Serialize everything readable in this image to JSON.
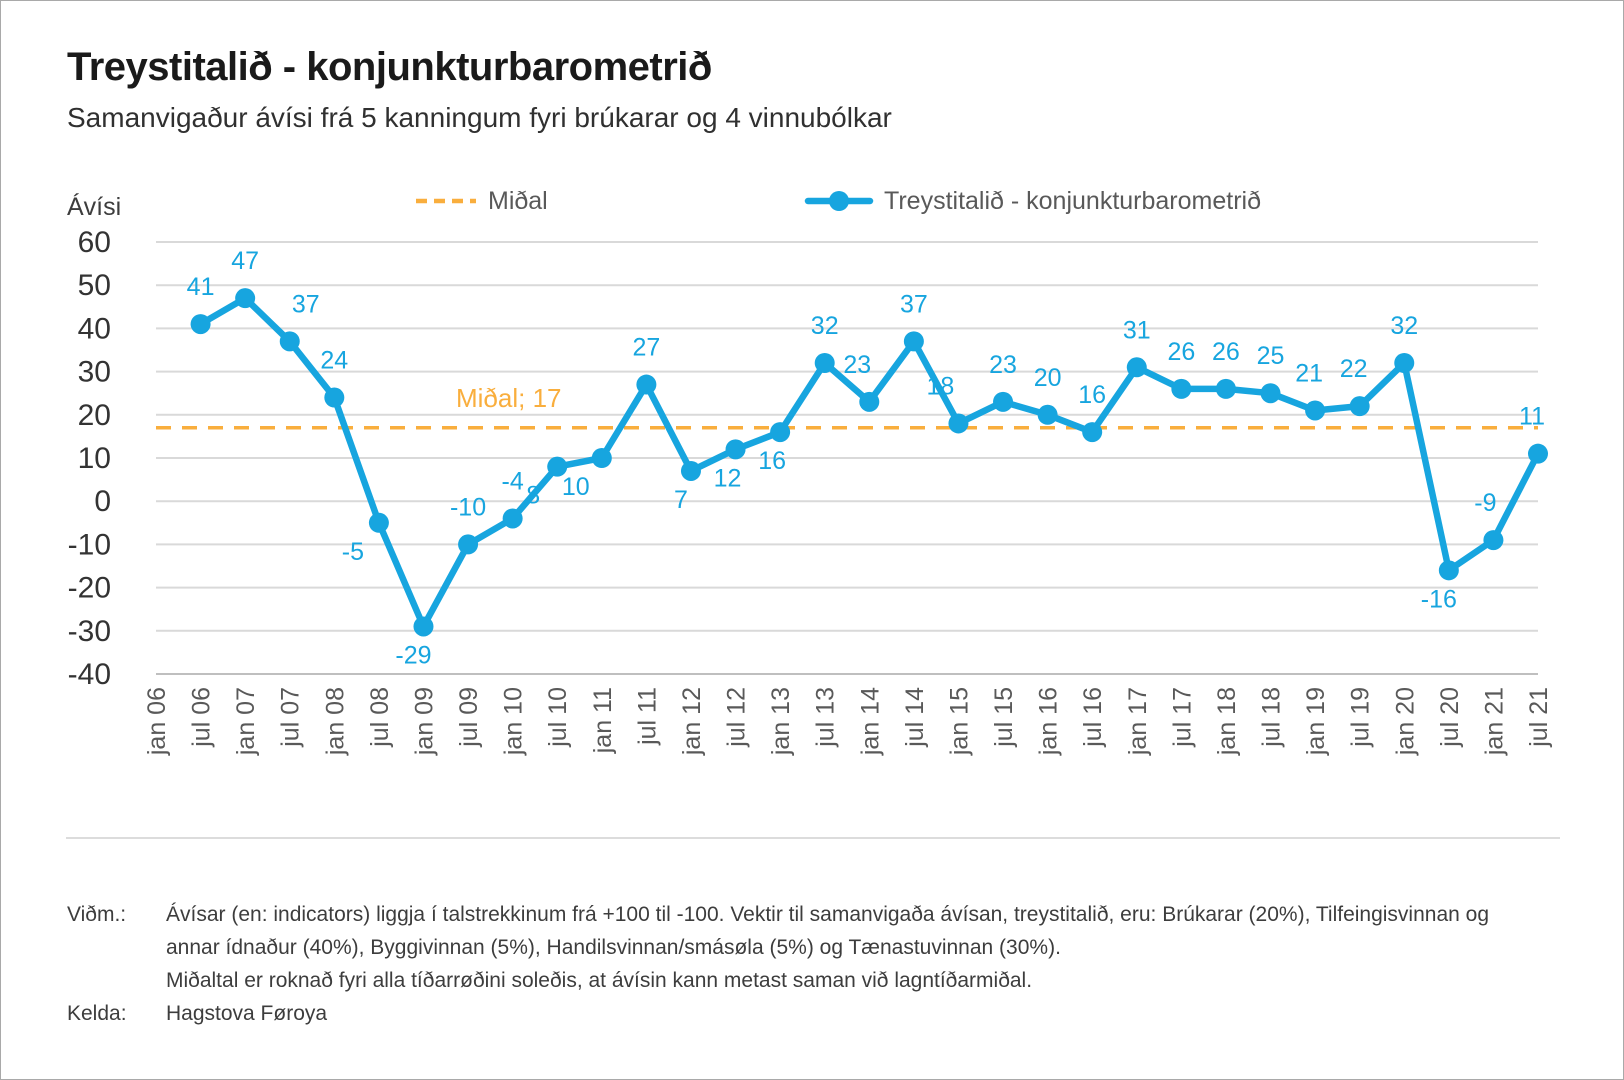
{
  "header": {
    "title": "Treystitalið - konjunkturbarometrið",
    "subtitle": "Samanvigaður ávísi frá 5 kanningum fyri brúkarar og 4 vinnubólkar"
  },
  "legend": {
    "midal": "Miðal",
    "series": "Treystitalið - konjunkturbarometrið"
  },
  "chart_data": {
    "type": "line",
    "title": "Treystitalið - konjunkturbarometrið",
    "y_axis_label": "Ávísi",
    "ylim": [
      -40,
      60
    ],
    "y_ticks": [
      60,
      50,
      40,
      30,
      20,
      10,
      0,
      -10,
      -20,
      -30,
      -40
    ],
    "grid": true,
    "legend_position": "top",
    "categories": [
      "jan 06",
      "jul 06",
      "jan 07",
      "jul 07",
      "jan 08",
      "jul 08",
      "jan 09",
      "jul 09",
      "jan 10",
      "jul 10",
      "jan 11",
      "jul 11",
      "jan 12",
      "jul 12",
      "jan 13",
      "jul 13",
      "jan 14",
      "jul 14",
      "jan 15",
      "jul 15",
      "jan 16",
      "jul 16",
      "jan 17",
      "jul 17",
      "jan 18",
      "jul 18",
      "jan 19",
      "jul 19",
      "jan 20",
      "jul 20",
      "jan 21",
      "jul 21"
    ],
    "series": [
      {
        "name": "Treystitalið - konjunkturbarometrið",
        "type": "line-markers",
        "color": "#17a5df",
        "values": [
          null,
          41,
          47,
          37,
          24,
          -5,
          -29,
          -10,
          -4,
          8,
          10,
          27,
          7,
          12,
          16,
          32,
          23,
          37,
          18,
          23,
          20,
          16,
          31,
          26,
          26,
          25,
          21,
          22,
          32,
          -16,
          -9,
          11
        ],
        "label_positions": [
          "",
          "above",
          "above",
          "above",
          "above",
          "below",
          "below",
          "above",
          "above",
          "below",
          "below",
          "above",
          "below",
          "below",
          "below",
          "above",
          "above",
          "above",
          "above",
          "above",
          "above",
          "above",
          "above",
          "above",
          "above",
          "above",
          "above",
          "above",
          "above",
          "below",
          "above",
          "above"
        ]
      },
      {
        "name": "Miðal",
        "type": "constant-dashed",
        "color": "#f9ae3d",
        "value": 17,
        "annotation": "Miðal; 17"
      }
    ]
  },
  "footnotes": {
    "vidm_label": "Viðm.:",
    "vidm_line1": "Ávísar (en: indicators) liggja í talstrekkinum frá +100 til -100. Vektir til samanvigaða ávísan, treystitalið, eru: Brúkarar (20%), Tilfeingisvinnan og annar ídnaður (40%), Byggivinnan (5%), Handilsvinnan/smásøla (5%) og Tænastuvinnan (30%).",
    "vidm_line2": "Miðaltal er roknað fyri alla tíðarrøðini soleðis, at ávísin kann metast saman við lagntíðarmiðal.",
    "kelda_label": "Kelda:",
    "kelda_value": "Hagstova Føroya"
  },
  "colors": {
    "series_blue": "#17a5df",
    "mean_orange": "#f9ae3d",
    "gridline": "#d9d9d9",
    "axis_line": "#bfbfbf",
    "tick_text": "#595959"
  }
}
